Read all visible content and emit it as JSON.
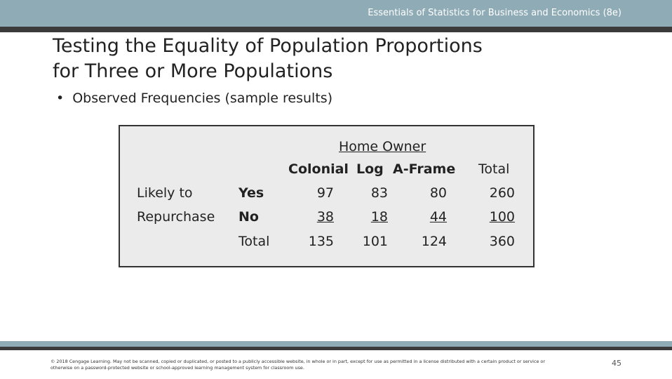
{
  "header": {
    "text": "Essentials of Statistics for Business and Economics (8e)"
  },
  "title": {
    "line1": "Testing the Equality of Population Proportions",
    "line2": "for Three or More Populations"
  },
  "bullet": {
    "text": "Observed Frequencies (sample results)"
  },
  "table": {
    "group_header": "Home Owner",
    "row_group_label_line1": "Likely to",
    "row_group_label_line2": "Repurchase",
    "column_headers": [
      "Colonial",
      "Log",
      "A-Frame",
      "Total"
    ],
    "rows": [
      {
        "label": "Yes",
        "values": [
          "97",
          "83",
          "80",
          "260"
        ]
      },
      {
        "label": "No",
        "values": [
          "38",
          "18",
          "44",
          "100"
        ]
      },
      {
        "label": "Total",
        "values": [
          "135",
          "101",
          "124",
          "360"
        ]
      }
    ]
  },
  "footer": {
    "copyright": "© 2018 Cengage Learning. May not be scanned, copied or duplicated, or posted to a publicly accessible website, in whole or in part, except for use as permitted in a license distributed with a certain product or service or otherwise on a password-protected website or school-approved learning management system for classroom use.",
    "page_number": "45"
  }
}
